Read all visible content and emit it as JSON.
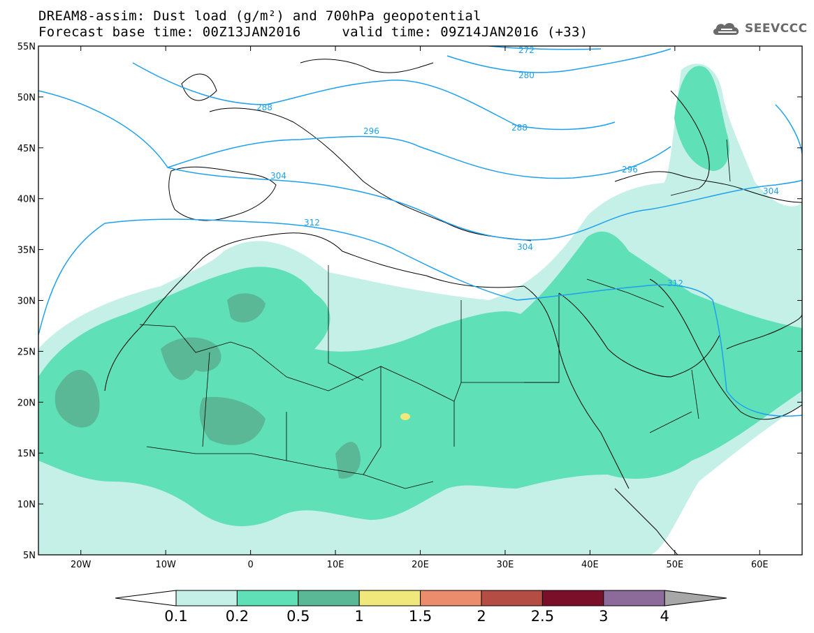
{
  "header": {
    "line1": "DREAM8-assim: Dust load (g/m²) and 700hPa geopotential",
    "line2": "Forecast base time: 00Z13JAN2016     valid time: 09Z14JAN2016 (+33)",
    "logo_text": "SEEVCCC",
    "logo_icon": "cloud-icon"
  },
  "map": {
    "lon_range": [
      -25,
      65
    ],
    "lat_range": [
      5,
      55
    ],
    "lon_ticks": [
      "20W",
      "10W",
      "0",
      "10E",
      "20E",
      "30E",
      "40E",
      "50E",
      "60E"
    ],
    "lat_ticks": [
      "55N",
      "50N",
      "45N",
      "40N",
      "35N",
      "30N",
      "25N",
      "20N",
      "15N",
      "10N",
      "5N"
    ],
    "geopotential_labels": [
      "272",
      "280",
      "288",
      "288",
      "296",
      "296",
      "304",
      "304",
      "304",
      "312",
      "312"
    ]
  },
  "colorbar": {
    "levels": [
      "0.1",
      "0.2",
      "0.5",
      "1",
      "1.5",
      "2",
      "2.5",
      "3",
      "4"
    ],
    "colors": [
      "#c4f0e8",
      "#5fe0b6",
      "#5ab896",
      "#f0e87a",
      "#eb8c6c",
      "#b44d44",
      "#7a0f2a",
      "#8c6a9a"
    ],
    "over_color": "#a7a7a7",
    "under_color": "#ffffff"
  },
  "colors": {
    "contour": "#1ea0ee",
    "dust_light": "#c4f0e8",
    "dust_mid": "#5fe0b6",
    "dust_dark": "#5ab896",
    "dust_peak": "#f0e87a"
  }
}
